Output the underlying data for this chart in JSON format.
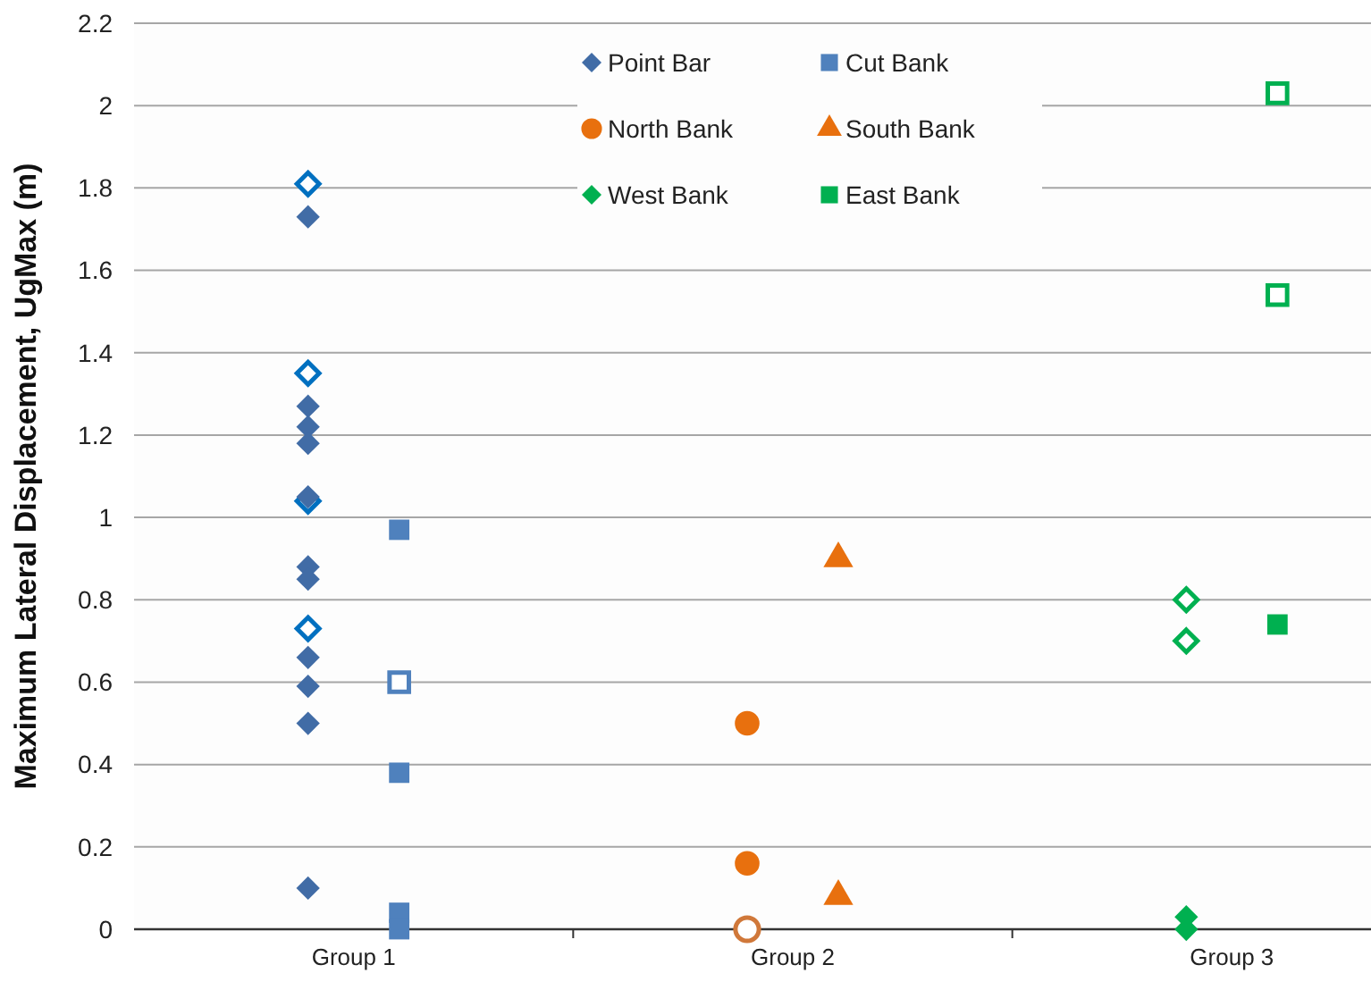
{
  "chart_data": {
    "type": "scatter",
    "ylabel": "Maximum Lateral Displacement, UgMax (m)",
    "categories": [
      "Group 1",
      "Group 2",
      "Group 3"
    ],
    "ylim": [
      0,
      2.2
    ],
    "yticks": [
      0,
      0.2,
      0.4,
      0.6,
      0.8,
      1,
      1.2,
      1.4,
      1.6,
      1.8,
      2,
      2.2
    ],
    "grid": "y",
    "legend": "top",
    "series": [
      {
        "name": "Point Bar",
        "color": "#416ca6",
        "marker": "diamond",
        "x": [
          "Group 1",
          "Group 1",
          "Group 1",
          "Group 1",
          "Group 1",
          "Group 1",
          "Group 1",
          "Group 1",
          "Group 1",
          "Group 1",
          "Group 1"
        ],
        "values": [
          1.73,
          1.27,
          1.22,
          1.18,
          1.05,
          0.88,
          0.85,
          0.66,
          0.59,
          0.5,
          0.1
        ]
      },
      {
        "name": "Cut Bank",
        "color": "#4f81bd",
        "marker": "square",
        "x": [
          "Group 1",
          "Group 1",
          "Group 1",
          "Group 1"
        ],
        "values": [
          0.97,
          0.38,
          0.04,
          0
        ]
      },
      {
        "name": "North Bank",
        "color": "#e8700e",
        "marker": "circle",
        "x": [
          "Group 2",
          "Group 2"
        ],
        "values": [
          0.5,
          0.16
        ]
      },
      {
        "name": "South Bank",
        "color": "#e8700e",
        "marker": "triangle",
        "x": [
          "Group 2",
          "Group 2"
        ],
        "values": [
          0.9,
          0.08
        ]
      },
      {
        "name": "West Bank",
        "color": "#00b050",
        "marker": "diamond",
        "x": [
          "Group 3",
          "Group 3"
        ],
        "values": [
          0.03,
          0
        ]
      },
      {
        "name": "East Bank",
        "color": "#00b050",
        "marker": "square",
        "x": [
          "Group 3"
        ],
        "values": [
          0.74
        ]
      },
      {
        "color": "#0070c0",
        "marker": "diamond",
        "x": [
          "Group 1",
          "Group 1",
          "Group 1",
          "Group 1"
        ],
        "values": [
          1.81,
          1.35,
          1.04,
          0.73
        ]
      },
      {
        "color": "#4f81bd",
        "marker": "square",
        "x": [
          "Group 1"
        ],
        "values": [
          0.6
        ]
      },
      {
        "color": "#d0783a",
        "marker": "circle",
        "x": [
          "Group 2"
        ],
        "values": [
          0
        ]
      },
      {
        "color": "#00b050",
        "marker": "diamond",
        "x": [
          "Group 3",
          "Group 3"
        ],
        "values": [
          0.8,
          0.7
        ]
      },
      {
        "color": "#00b050",
        "marker": "square",
        "x": [
          "Group 3",
          "Group 3"
        ],
        "values": [
          2.03,
          1.54
        ]
      }
    ]
  }
}
